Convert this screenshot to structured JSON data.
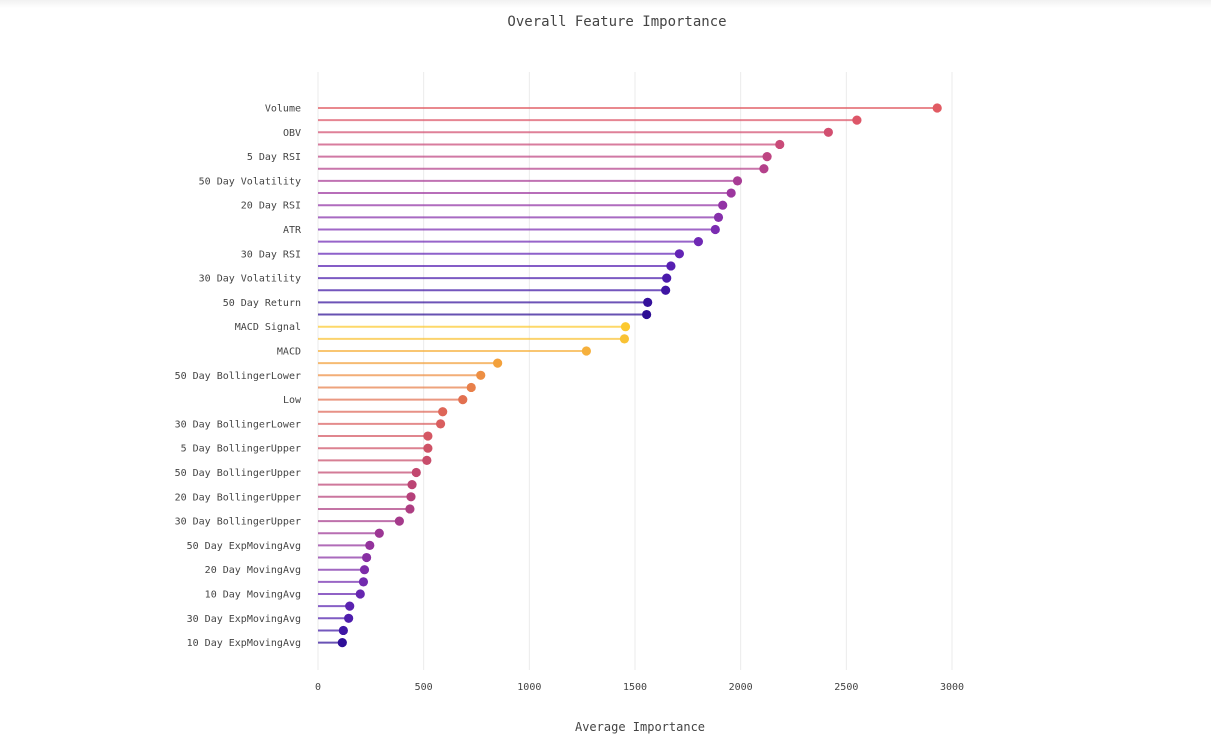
{
  "chart_data": {
    "type": "lollipop",
    "orientation": "horizontal",
    "title": "Overall Feature Importance",
    "xlabel": "Average Importance",
    "ylabel": "",
    "xlim": [
      0,
      3000
    ],
    "xticks": [
      0,
      500,
      1000,
      1500,
      2000,
      2500,
      3000
    ],
    "grid": true,
    "legend": "none",
    "categories": [
      "Volume",
      "",
      "OBV",
      "",
      "5 Day RSI",
      "",
      "50 Day Volatility",
      "",
      "20 Day RSI",
      "",
      "ATR",
      "",
      "30 Day RSI",
      "",
      "30 Day Volatility",
      "",
      "50 Day Return",
      "",
      "MACD Signal",
      "",
      "MACD",
      "",
      "50 Day BollingerLower",
      "",
      "Low",
      "",
      "30 Day BollingerLower",
      "",
      "5 Day BollingerUpper",
      "",
      "50 Day BollingerUpper",
      "",
      "20 Day BollingerUpper",
      "",
      "30 Day BollingerUpper",
      "",
      "50 Day ExpMovingAvg",
      "",
      "20 Day MovingAvg",
      "",
      "10 Day MovingAvg",
      "",
      "30 Day ExpMovingAvg",
      "",
      "10 Day ExpMovingAvg"
    ],
    "values": [
      2930,
      2550,
      2415,
      2185,
      2125,
      2110,
      1985,
      1955,
      1915,
      1895,
      1880,
      1800,
      1710,
      1670,
      1650,
      1645,
      1560,
      1555,
      1455,
      1450,
      1270,
      850,
      770,
      725,
      685,
      590,
      580,
      520,
      520,
      515,
      465,
      445,
      440,
      435,
      385,
      290,
      245,
      230,
      220,
      215,
      200,
      150,
      145,
      120,
      115
    ],
    "colors": [
      "#e15b63",
      "#dd5668",
      "#d24f70",
      "#c94a78",
      "#be4582",
      "#b4418b",
      "#a83c95",
      "#9c369e",
      "#9233a5",
      "#8630ab",
      "#7b2cb1",
      "#6f28b4",
      "#6324b5",
      "#561fb1",
      "#4a1aab",
      "#3f15a3",
      "#35119b",
      "#2d0e94",
      "#fcc92f",
      "#f9c234",
      "#f6b03c",
      "#f3a13b",
      "#ed8f43",
      "#e8804a",
      "#e27050",
      "#de6658",
      "#d95e5f",
      "#d45763",
      "#ce5266",
      "#c84d6b",
      "#c2486f",
      "#bc4474",
      "#b5417a",
      "#ad3e82",
      "#a53a8b",
      "#9c3694",
      "#93339c",
      "#8830a3",
      "#7d2ca9",
      "#722aae",
      "#6626b0",
      "#5a22b0",
      "#4e1dac",
      "#3f17a5",
      "#2f0f98"
    ]
  }
}
